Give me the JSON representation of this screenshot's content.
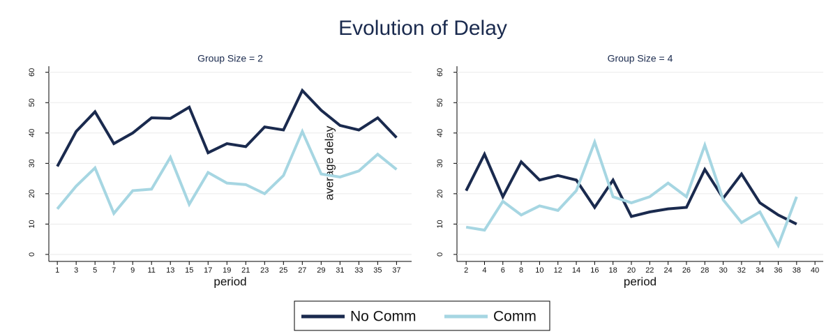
{
  "title": "Evolution of Delay",
  "ylabel": "average delay",
  "legend": [
    {
      "name": "No Comm",
      "color": "#1a2a4e"
    },
    {
      "name": "Comm",
      "color": "#a6d6e2"
    }
  ],
  "chart_data": [
    {
      "type": "line",
      "title": "Group Size = 2",
      "xlabel": "period",
      "x": [
        1,
        3,
        5,
        7,
        9,
        11,
        13,
        15,
        17,
        19,
        21,
        23,
        25,
        27,
        29,
        31,
        33,
        35,
        37
      ],
      "series": [
        {
          "values": [
            29,
            40.5,
            47,
            36.5,
            40,
            45,
            44.8,
            48.5,
            33.5,
            36.5,
            35.5,
            42,
            41,
            54,
            47.5,
            42.5,
            41,
            45,
            38.5
          ]
        },
        {
          "values": [
            15,
            22.5,
            28.5,
            13.5,
            21,
            21.5,
            32,
            16.5,
            27,
            23.5,
            23,
            20,
            26,
            40.5,
            26.5,
            25.5,
            27.5,
            33,
            28
          ]
        }
      ],
      "xlim": [
        0.1,
        38.6
      ],
      "xticks": [
        1,
        3,
        5,
        7,
        9,
        11,
        13,
        15,
        17,
        19,
        21,
        23,
        25,
        27,
        29,
        31,
        33,
        35,
        37
      ],
      "ylim": [
        -2.3,
        62
      ],
      "yticks": [
        0,
        10,
        20,
        30,
        40,
        50,
        60
      ],
      "grid": true
    },
    {
      "type": "line",
      "title": "Group Size = 4",
      "xlabel": "period",
      "x": [
        2,
        4,
        6,
        8,
        10,
        12,
        14,
        16,
        18,
        20,
        22,
        24,
        26,
        28,
        30,
        32,
        34,
        36,
        38
      ],
      "series": [
        {
          "values": [
            21,
            33,
            19,
            30.5,
            24.5,
            26,
            24.5,
            15.5,
            24.5,
            12.5,
            14,
            15,
            15.5,
            28,
            18.5,
            26.5,
            17,
            13,
            10
          ]
        },
        {
          "values": [
            9,
            8,
            17.5,
            13,
            16,
            14.5,
            21,
            37,
            19,
            17,
            19,
            23.5,
            19,
            36,
            18,
            10.5,
            14,
            3,
            19
          ]
        }
      ],
      "xlim": [
        1,
        40.9
      ],
      "xticks": [
        2,
        4,
        6,
        8,
        10,
        12,
        14,
        16,
        18,
        20,
        22,
        24,
        26,
        28,
        30,
        32,
        34,
        36,
        38,
        40
      ],
      "ylim": [
        -2.3,
        62
      ],
      "yticks": [
        0,
        10,
        20,
        30,
        40,
        50,
        60
      ],
      "grid": true
    }
  ]
}
